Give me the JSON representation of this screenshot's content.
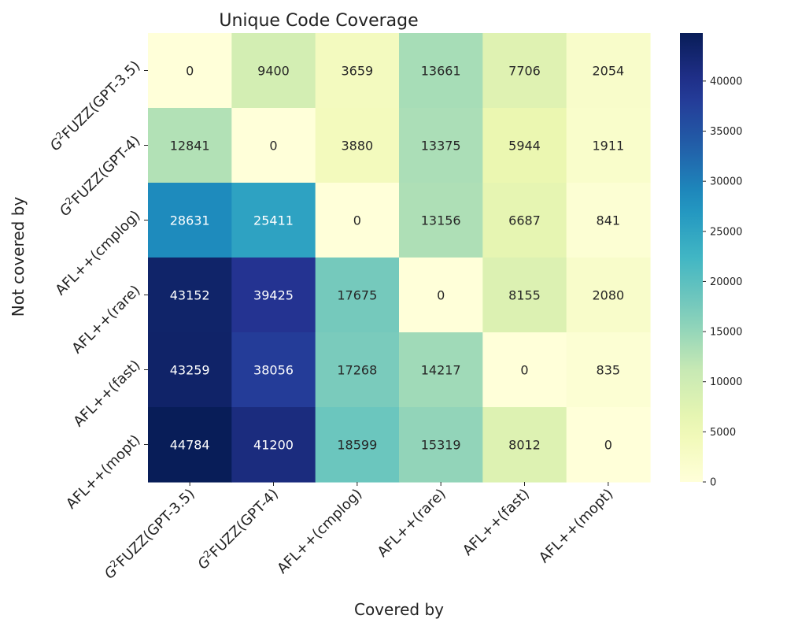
{
  "chart_data": {
    "type": "heatmap",
    "title": "Unique Code Coverage",
    "xlabel": "Covered by",
    "ylabel": "Not covered by",
    "x_categories": [
      {
        "prefix": "G",
        "sup": "2",
        "rest": "FUZZ(GPT-3.5)"
      },
      {
        "prefix": "G",
        "sup": "2",
        "rest": "FUZZ(GPT-4)"
      },
      {
        "prefix": "",
        "sup": "",
        "rest": "AFL++(cmplog)"
      },
      {
        "prefix": "",
        "sup": "",
        "rest": "AFL++(rare)"
      },
      {
        "prefix": "",
        "sup": "",
        "rest": "AFL++(fast)"
      },
      {
        "prefix": "",
        "sup": "",
        "rest": "AFL++(mopt)"
      }
    ],
    "y_categories": [
      {
        "prefix": "G",
        "sup": "2",
        "rest": "FUZZ(GPT-3.5)"
      },
      {
        "prefix": "G",
        "sup": "2",
        "rest": "FUZZ(GPT-4)"
      },
      {
        "prefix": "",
        "sup": "",
        "rest": "AFL++(cmplog)"
      },
      {
        "prefix": "",
        "sup": "",
        "rest": "AFL++(rare)"
      },
      {
        "prefix": "",
        "sup": "",
        "rest": "AFL++(fast)"
      },
      {
        "prefix": "",
        "sup": "",
        "rest": "AFL++(mopt)"
      }
    ],
    "values": [
      [
        0,
        9400,
        3659,
        13661,
        7706,
        2054
      ],
      [
        12841,
        0,
        3880,
        13375,
        5944,
        1911
      ],
      [
        28631,
        25411,
        0,
        13156,
        6687,
        841
      ],
      [
        43152,
        39425,
        17675,
        0,
        8155,
        2080
      ],
      [
        43259,
        38056,
        17268,
        14217,
        0,
        835
      ],
      [
        44784,
        41200,
        18599,
        15319,
        8012,
        0
      ]
    ],
    "colormap": "YlGnBu",
    "vmin": 0,
    "vmax": 44784,
    "colorbar_ticks": [
      0,
      5000,
      10000,
      15000,
      20000,
      25000,
      30000,
      35000,
      40000
    ],
    "colorbar_tick_labels": [
      "0",
      "5000",
      "10000",
      "15000",
      "20000",
      "25000",
      "30000",
      "35000",
      "40000"
    ]
  }
}
